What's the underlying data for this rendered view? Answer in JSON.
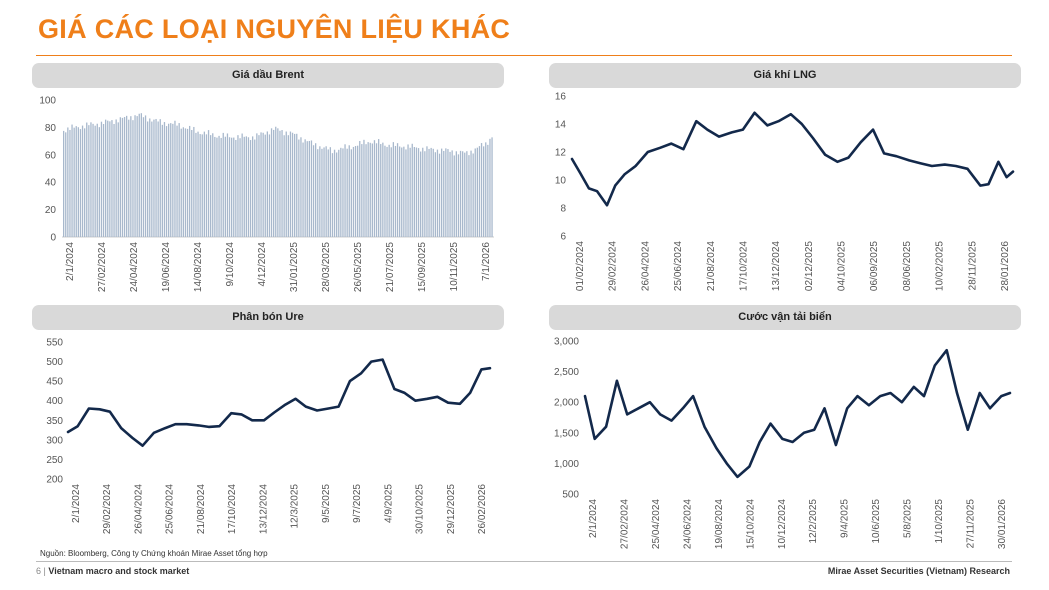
{
  "page": {
    "title": "GIÁ CÁC LOẠI NGUYÊN LIỆU KHÁC",
    "source_note": "Nguồn: Bloomberg, Công ty Chứng khoán Mirae Asset tổng hợp",
    "footer_page": "6",
    "footer_separator": "|",
    "footer_left": "Vietnam macro and stock market",
    "footer_right": "Mirae Asset Securities (Vietnam) Research",
    "accent_color": "#ef7f1a",
    "line_color": "#13294b",
    "bar_color": "#a8b8cc"
  },
  "chart_data": [
    {
      "type": "bar",
      "title": "Giá dầu Brent",
      "ylim": [
        0,
        100
      ],
      "yticks": [
        "0",
        "20",
        "40",
        "60",
        "80",
        "100"
      ],
      "xtick_labels": [
        "2/1/2024",
        "27/02/2024",
        "24/04/2024",
        "19/06/2024",
        "14/08/2024",
        "9/10/2024",
        "4/12/2024",
        "31/01/2025",
        "28/03/2025",
        "26/05/2025",
        "21/07/2025",
        "15/09/2025",
        "10/11/2025",
        "7/1/2026"
      ],
      "x": [
        "2/1/2024",
        "6/2/2024",
        "12/3/2024",
        "16/4/2024",
        "21/5/2024",
        "25/6/2024",
        "30/7/2024",
        "3/9/2024",
        "8/10/2024",
        "12/11/2024",
        "17/12/2024",
        "21/1/2025",
        "25/2/2025",
        "1/4/2025",
        "6/5/2025",
        "10/6/2025",
        "15/7/2025",
        "19/8/2025",
        "23/9/2025",
        "28/10/2025",
        "2/12/2025",
        "6/1/2026",
        "10/2/2026",
        "26/2/2026"
      ],
      "values": [
        78,
        81,
        83,
        86,
        89,
        84,
        82,
        77,
        74,
        73,
        73,
        79,
        75,
        68,
        63,
        66,
        70,
        67,
        66,
        64,
        63,
        61,
        68,
        76
      ]
    },
    {
      "type": "line",
      "title": "Giá khí LNG",
      "ylim": [
        6,
        16
      ],
      "yticks": [
        "6",
        "8",
        "10",
        "12",
        "14",
        "16"
      ],
      "xtick_labels": [
        "01/02/2024",
        "29/02/2024",
        "26/04/2024",
        "25/06/2024",
        "21/08/2024",
        "17/10/2024",
        "13/12/2024",
        "02/12/2025",
        "04/10/2025",
        "06/09/2025",
        "08/06/2025",
        "10/02/2025",
        "28/11/2025",
        "28/01/2026"
      ],
      "x": [
        "1/2/2024",
        "15/2/2024",
        "1/3/2024",
        "15/3/2024",
        "1/4/2024",
        "15/4/2024",
        "1/5/2024",
        "20/5/2024",
        "10/6/2024",
        "1/7/2024",
        "20/7/2024",
        "10/8/2024",
        "1/9/2024",
        "20/9/2024",
        "10/10/2024",
        "1/11/2024",
        "20/11/2024",
        "10/12/2024",
        "1/1/2025",
        "20/1/2025",
        "10/2/2025",
        "1/3/2025",
        "20/3/2025",
        "10/4/2025",
        "1/5/2025",
        "20/5/2025",
        "10/6/2025",
        "1/7/2025",
        "20/7/2025",
        "10/8/2025",
        "1/9/2025",
        "20/9/2025",
        "10/10/2025",
        "1/11/2025",
        "20/11/2025",
        "10/12/2025",
        "1/1/2026",
        "15/1/2026",
        "1/2/2026",
        "15/2/2026",
        "26/2/2026"
      ],
      "values": [
        11.5,
        10.5,
        9.4,
        9.2,
        8.2,
        9.6,
        10.4,
        11.0,
        12.0,
        12.3,
        12.6,
        12.2,
        14.2,
        13.6,
        13.1,
        13.4,
        13.6,
        14.8,
        13.9,
        14.2,
        14.7,
        14.0,
        13.0,
        11.8,
        11.3,
        11.6,
        12.7,
        13.6,
        11.9,
        11.7,
        11.4,
        11.2,
        11.0,
        11.1,
        11.0,
        10.8,
        9.6,
        9.7,
        11.3,
        10.2,
        10.6
      ]
    },
    {
      "type": "line",
      "title": "Phân bón Ure",
      "ylim": [
        200,
        550
      ],
      "yticks": [
        "200",
        "250",
        "300",
        "350",
        "400",
        "450",
        "500",
        "550"
      ],
      "xtick_labels": [
        "2/1/2024",
        "29/02/2024",
        "26/04/2024",
        "25/06/2024",
        "21/08/2024",
        "17/10/2024",
        "13/12/2024",
        "12/3/2025",
        "9/5/2025",
        "9/7/2025",
        "4/9/2025",
        "30/10/2025",
        "29/12/2025",
        "26/02/2026"
      ],
      "x": [
        "2/1/2024",
        "20/1/2024",
        "10/2/2024",
        "1/3/2024",
        "20/3/2024",
        "10/4/2024",
        "1/5/2024",
        "20/5/2024",
        "10/6/2024",
        "1/7/2024",
        "20/7/2024",
        "10/8/2024",
        "1/9/2024",
        "20/9/2024",
        "10/10/2024",
        "1/11/2024",
        "20/11/2024",
        "10/12/2024",
        "1/1/2025",
        "20/1/2025",
        "10/2/2025",
        "1/3/2025",
        "20/3/2025",
        "10/4/2025",
        "1/5/2025",
        "20/5/2025",
        "10/6/2025",
        "1/7/2025",
        "20/7/2025",
        "10/8/2025",
        "1/9/2025",
        "20/9/2025",
        "10/10/2025",
        "1/11/2025",
        "20/11/2025",
        "10/12/2025",
        "1/1/2026",
        "20/1/2026",
        "10/2/2026",
        "26/2/2026"
      ],
      "values": [
        320,
        335,
        380,
        378,
        372,
        330,
        305,
        285,
        318,
        330,
        340,
        340,
        337,
        333,
        335,
        368,
        365,
        350,
        350,
        370,
        390,
        405,
        385,
        375,
        380,
        385,
        450,
        470,
        500,
        505,
        430,
        420,
        400,
        405,
        410,
        395,
        392,
        420,
        480,
        483
      ]
    },
    {
      "type": "line",
      "title": "Cước vận tải biển",
      "ylim": [
        500,
        3000
      ],
      "yticks": [
        "500",
        "1,000",
        "1,500",
        "2,000",
        "2,500",
        "3,000"
      ],
      "xtick_labels": [
        "2/1/2024",
        "27/02/2024",
        "25/04/2024",
        "24/06/2024",
        "19/08/2024",
        "15/10/2024",
        "10/12/2024",
        "12/2/2025",
        "9/4/2025",
        "10/6/2025",
        "5/8/2025",
        "1/10/2025",
        "27/11/2025",
        "30/01/2026"
      ],
      "x": [
        "2/1/2024",
        "20/1/2024",
        "10/2/2024",
        "1/3/2024",
        "20/3/2024",
        "10/4/2024",
        "1/5/2024",
        "20/5/2024",
        "10/6/2024",
        "1/7/2024",
        "20/7/2024",
        "10/8/2024",
        "1/9/2024",
        "20/9/2024",
        "10/10/2024",
        "1/11/2024",
        "20/11/2024",
        "10/12/2024",
        "1/1/2025",
        "20/1/2025",
        "10/2/2025",
        "1/3/2025",
        "20/3/2025",
        "10/4/2025",
        "1/5/2025",
        "20/5/2025",
        "10/6/2025",
        "1/7/2025",
        "20/7/2025",
        "10/8/2025",
        "1/9/2025",
        "20/9/2025",
        "10/10/2025",
        "1/11/2025",
        "20/11/2025",
        "10/12/2025",
        "1/1/2026",
        "20/1/2026",
        "10/2/2026",
        "26/2/2026"
      ],
      "values": [
        2100,
        1400,
        1600,
        2350,
        1800,
        1900,
        2000,
        1800,
        1700,
        1900,
        2100,
        1600,
        1250,
        1000,
        780,
        950,
        1350,
        1650,
        1400,
        1350,
        1500,
        1550,
        1900,
        1300,
        1900,
        2100,
        1950,
        2100,
        2150,
        2000,
        2250,
        2100,
        2600,
        2850,
        2150,
        1550,
        2150,
        1900,
        2100,
        2150
      ]
    }
  ]
}
